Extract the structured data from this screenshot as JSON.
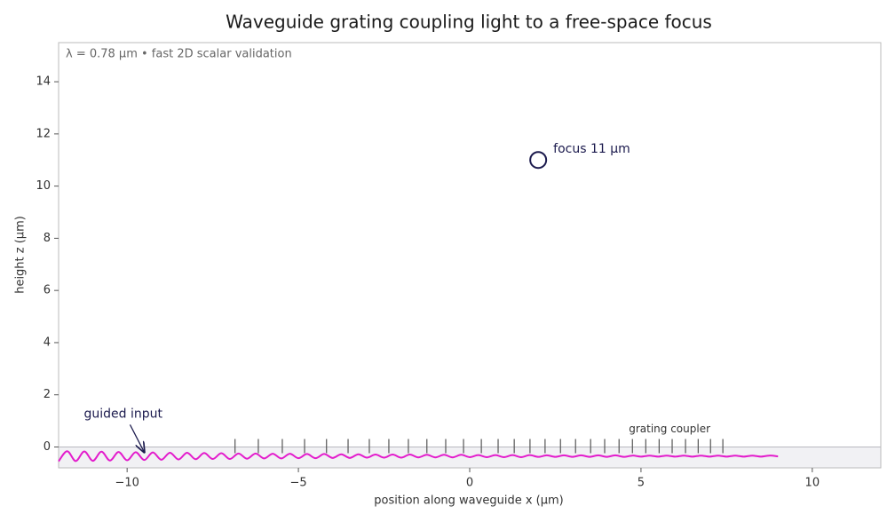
{
  "chart_data": {
    "type": "line",
    "title": "Waveguide grating coupling light to a free-space focus",
    "subtitle": "λ = 0.78 µm   •   fast 2D scalar validation",
    "x_label": "position along waveguide  x (µm)",
    "y_label": "height  z (µm)",
    "xlim": [
      -12,
      12
    ],
    "ylim": [
      -0.8,
      15.5
    ],
    "xticks": [
      {
        "value": -10,
        "label": "−10"
      },
      {
        "value": -5,
        "label": "−5"
      },
      0,
      5,
      10
    ],
    "yticks": [
      0,
      2,
      4,
      6,
      8,
      10,
      12,
      14
    ],
    "grid": false,
    "color": "#e31ccc",
    "x": [
      -12,
      -11.75,
      -11.5,
      -11.25,
      -11,
      -10.75,
      -10.5,
      -10.25,
      -10,
      -9.75,
      -9.5,
      -9.25,
      -9,
      -8.75,
      -8.5,
      -8.25,
      -8,
      -7.75,
      -7.5,
      -7.25,
      -7,
      -6.75,
      -6.5,
      -6.25,
      -6,
      -5.75,
      -5.5,
      -5.25,
      -5,
      -4.75,
      -4.5,
      -4.25,
      -4,
      -3.75,
      -3.5,
      -3.25,
      -3,
      -2.75,
      -2.5,
      -2.25,
      -2,
      -1.75,
      -1.5,
      -1.25,
      -1,
      -0.75,
      -0.5,
      -0.25,
      0,
      0.25,
      0.5,
      0.75,
      1,
      1.25,
      1.5,
      1.75,
      2,
      2.25,
      2.5,
      2.75,
      3,
      3.25,
      3.5,
      3.75,
      4,
      4.25,
      4.5,
      4.75,
      5,
      5.25,
      5.5,
      5.75,
      6,
      6.25,
      6.5,
      6.75,
      7,
      7.25,
      7.5,
      7.75,
      8,
      8.25,
      8.5,
      8.75,
      9
    ],
    "values": [
      -0.55,
      -0.16,
      -0.54,
      -0.17,
      -0.53,
      -0.18,
      -0.52,
      -0.19,
      -0.51,
      -0.2,
      -0.5,
      -0.21,
      -0.49,
      -0.22,
      -0.48,
      -0.22,
      -0.47,
      -0.23,
      -0.46,
      -0.24,
      -0.46,
      -0.25,
      -0.45,
      -0.25,
      -0.44,
      -0.26,
      -0.44,
      -0.26,
      -0.43,
      -0.27,
      -0.43,
      -0.27,
      -0.42,
      -0.28,
      -0.42,
      -0.28,
      -0.41,
      -0.29,
      -0.41,
      -0.29,
      -0.41,
      -0.29,
      -0.4,
      -0.3,
      -0.4,
      -0.3,
      -0.4,
      -0.3,
      -0.39,
      -0.31,
      -0.39,
      -0.31,
      -0.39,
      -0.31,
      -0.39,
      -0.31,
      -0.38,
      -0.32,
      -0.38,
      -0.32,
      -0.38,
      -0.32,
      -0.38,
      -0.32,
      -0.38,
      -0.32,
      -0.38,
      -0.33,
      -0.37,
      -0.33,
      -0.37,
      -0.33,
      -0.37,
      -0.33,
      -0.37,
      -0.33,
      -0.37,
      -0.33,
      -0.37,
      -0.33,
      -0.37,
      -0.33,
      -0.37,
      -0.33,
      -0.36
    ],
    "teeth_x": [
      -6.85,
      -6.17,
      -5.47,
      -4.82,
      -4.18,
      -3.55,
      -2.93,
      -2.36,
      -1.79,
      -1.25,
      -0.7,
      -0.18,
      0.34,
      0.83,
      1.3,
      1.76,
      2.2,
      2.65,
      3.09,
      3.53,
      3.94,
      4.36,
      4.75,
      5.14,
      5.53,
      5.91,
      6.3,
      6.67,
      7.03,
      7.39
    ],
    "teeth_label": "grating coupler",
    "focus": {
      "x": 2,
      "z": 11,
      "label": "focus  11 µm",
      "color": "#1b1a4d"
    },
    "input": {
      "label": "guided input",
      "xy": [
        -9.5,
        -0.2
      ]
    }
  }
}
